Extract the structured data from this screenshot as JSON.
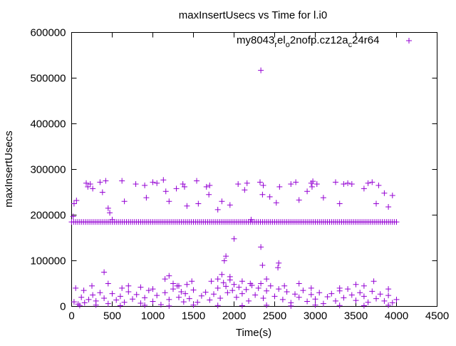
{
  "chart_data": {
    "type": "scatter",
    "title": "maxInsertUsecs vs Time for l.i0",
    "xlabel": "Time(s)",
    "ylabel": "maxInsertUsecs",
    "xlim": [
      0,
      4500
    ],
    "ylim": [
      0,
      600000
    ],
    "xticks": [
      "0",
      "500",
      "1000",
      "1500",
      "2000",
      "2500",
      "3000",
      "3500",
      "4000",
      "4500"
    ],
    "yticks": [
      "0",
      "100000",
      "200000",
      "300000",
      "400000",
      "500000",
      "600000"
    ],
    "grid": false,
    "legend_position": "top-right",
    "legend": {
      "main": "my8043",
      "sub1": "r",
      "mid1": "el",
      "sub2": "o",
      "mid2": "2nofp.cz12a",
      "sub3": "c",
      "tail": "24r64"
    },
    "series": [
      {
        "name": "my8043_rel_o2nofp.cz12a_c24r64",
        "color": "#9400D3",
        "baseline": {
          "y": 185000,
          "x_start": 0,
          "x_end": 4000,
          "x_step": 25
        },
        "points": [
          [
            2330,
            517000
          ],
          [
            2000,
            148000
          ],
          [
            2330,
            130000
          ],
          [
            1900,
            110000
          ],
          [
            1880,
            100000
          ],
          [
            2350,
            90000
          ],
          [
            2550,
            95000
          ],
          [
            2540,
            85000
          ],
          [
            30,
            225000
          ],
          [
            60,
            232000
          ],
          [
            20,
            197000
          ],
          [
            180,
            270000
          ],
          [
            200,
            262000
          ],
          [
            230,
            268000
          ],
          [
            260,
            258000
          ],
          [
            350,
            272000
          ],
          [
            420,
            275000
          ],
          [
            380,
            250000
          ],
          [
            450,
            215000
          ],
          [
            470,
            205000
          ],
          [
            500,
            190000
          ],
          [
            620,
            275000
          ],
          [
            650,
            230000
          ],
          [
            790,
            268000
          ],
          [
            900,
            265000
          ],
          [
            920,
            238000
          ],
          [
            1000,
            272000
          ],
          [
            1050,
            270000
          ],
          [
            1130,
            277000
          ],
          [
            1160,
            252000
          ],
          [
            1200,
            230000
          ],
          [
            1290,
            258000
          ],
          [
            1370,
            268000
          ],
          [
            1390,
            262000
          ],
          [
            1420,
            220000
          ],
          [
            1540,
            275000
          ],
          [
            1560,
            225000
          ],
          [
            1660,
            262000
          ],
          [
            1690,
            245000
          ],
          [
            1700,
            265000
          ],
          [
            1800,
            212000
          ],
          [
            1850,
            230000
          ],
          [
            1950,
            222000
          ],
          [
            2050,
            268000
          ],
          [
            2130,
            255000
          ],
          [
            2160,
            270000
          ],
          [
            2210,
            190000
          ],
          [
            2320,
            272000
          ],
          [
            2360,
            265000
          ],
          [
            2350,
            245000
          ],
          [
            2440,
            240000
          ],
          [
            2520,
            227000
          ],
          [
            2560,
            262000
          ],
          [
            2700,
            268000
          ],
          [
            2760,
            272000
          ],
          [
            2800,
            233000
          ],
          [
            2900,
            252000
          ],
          [
            2950,
            270000
          ],
          [
            2970,
            274000
          ],
          [
            2960,
            262000
          ],
          [
            3020,
            268000
          ],
          [
            3100,
            238000
          ],
          [
            3250,
            272000
          ],
          [
            3300,
            225000
          ],
          [
            3350,
            268000
          ],
          [
            3400,
            270000
          ],
          [
            3450,
            268000
          ],
          [
            3600,
            258000
          ],
          [
            3650,
            270000
          ],
          [
            3700,
            272000
          ],
          [
            3750,
            225000
          ],
          [
            3780,
            265000
          ],
          [
            3850,
            248000
          ],
          [
            3900,
            218000
          ],
          [
            3950,
            243000
          ],
          [
            400,
            75000
          ],
          [
            450,
            50000
          ],
          [
            700,
            45000
          ],
          [
            1150,
            60000
          ],
          [
            1200,
            67000
          ],
          [
            1250,
            50000
          ],
          [
            1320,
            45000
          ],
          [
            1420,
            48000
          ],
          [
            1480,
            55000
          ],
          [
            1720,
            55000
          ],
          [
            1800,
            60000
          ],
          [
            1850,
            70000
          ],
          [
            1950,
            65000
          ],
          [
            2100,
            55000
          ],
          [
            2200,
            50000
          ],
          [
            2400,
            60000
          ],
          [
            2620,
            45000
          ],
          [
            2800,
            50000
          ],
          [
            2950,
            40000
          ],
          [
            3300,
            40000
          ],
          [
            3500,
            48000
          ],
          [
            3600,
            45000
          ],
          [
            3720,
            55000
          ],
          [
            3900,
            38000
          ],
          [
            250,
            45000
          ],
          [
            150,
            35000
          ],
          [
            50,
            40000
          ],
          [
            620,
            40000
          ],
          [
            850,
            42000
          ],
          [
            1000,
            38000
          ],
          [
            30,
            10000
          ],
          [
            80,
            5000
          ],
          [
            120,
            20000
          ],
          [
            160,
            8000
          ],
          [
            210,
            15000
          ],
          [
            260,
            25000
          ],
          [
            300,
            12000
          ],
          [
            350,
            30000
          ],
          [
            400,
            18000
          ],
          [
            450,
            6000
          ],
          [
            500,
            28000
          ],
          [
            550,
            14000
          ],
          [
            600,
            22000
          ],
          [
            650,
            9000
          ],
          [
            700,
            32000
          ],
          [
            750,
            16000
          ],
          [
            800,
            26000
          ],
          [
            850,
            7000
          ],
          [
            900,
            19000
          ],
          [
            950,
            35000
          ],
          [
            1000,
            11000
          ],
          [
            1050,
            24000
          ],
          [
            1100,
            4000
          ],
          [
            1150,
            30000
          ],
          [
            1200,
            15000
          ],
          [
            1250,
            38000
          ],
          [
            1300,
            45000
          ],
          [
            1320,
            20000
          ],
          [
            1350,
            32000
          ],
          [
            1380,
            10000
          ],
          [
            1400,
            28000
          ],
          [
            1450,
            17000
          ],
          [
            1500,
            36000
          ],
          [
            1550,
            9000
          ],
          [
            1600,
            23000
          ],
          [
            1650,
            31000
          ],
          [
            1700,
            14000
          ],
          [
            1750,
            27000
          ],
          [
            1800,
            40000
          ],
          [
            1830,
            18000
          ],
          [
            1870,
            52000
          ],
          [
            1900,
            44000
          ],
          [
            1920,
            30000
          ],
          [
            1950,
            58000
          ],
          [
            1980,
            35000
          ],
          [
            2000,
            48000
          ],
          [
            2030,
            20000
          ],
          [
            2060,
            42000
          ],
          [
            2100,
            28000
          ],
          [
            2150,
            37000
          ],
          [
            2180,
            12000
          ],
          [
            2220,
            46000
          ],
          [
            2260,
            25000
          ],
          [
            2300,
            40000
          ],
          [
            2330,
            50000
          ],
          [
            2360,
            18000
          ],
          [
            2400,
            34000
          ],
          [
            2450,
            45000
          ],
          [
            2500,
            22000
          ],
          [
            2550,
            38000
          ],
          [
            2600,
            15000
          ],
          [
            2650,
            32000
          ],
          [
            2700,
            8000
          ],
          [
            2750,
            27000
          ],
          [
            2800,
            20000
          ],
          [
            2850,
            35000
          ],
          [
            2900,
            11000
          ],
          [
            2950,
            26000
          ],
          [
            3000,
            16000
          ],
          [
            3050,
            30000
          ],
          [
            3100,
            6000
          ],
          [
            3150,
            21000
          ],
          [
            3200,
            28000
          ],
          [
            3250,
            12000
          ],
          [
            3300,
            34000
          ],
          [
            3350,
            19000
          ],
          [
            3400,
            38000
          ],
          [
            3450,
            25000
          ],
          [
            3500,
            13000
          ],
          [
            3550,
            30000
          ],
          [
            3600,
            22000
          ],
          [
            3650,
            9000
          ],
          [
            3700,
            33000
          ],
          [
            3750,
            17000
          ],
          [
            3800,
            27000
          ],
          [
            3850,
            12000
          ],
          [
            3900,
            24000
          ],
          [
            3950,
            8000
          ],
          [
            4000,
            15000
          ],
          [
            100,
            2000
          ],
          [
            300,
            3000
          ],
          [
            600,
            1500
          ],
          [
            900,
            2500
          ],
          [
            1200,
            1000
          ],
          [
            1500,
            3000
          ],
          [
            1800,
            2000
          ],
          [
            2100,
            1500
          ],
          [
            2400,
            2500
          ],
          [
            2700,
            1000
          ],
          [
            3000,
            3000
          ],
          [
            3300,
            2000
          ],
          [
            3600,
            1500
          ],
          [
            3900,
            2500
          ]
        ]
      }
    ]
  }
}
